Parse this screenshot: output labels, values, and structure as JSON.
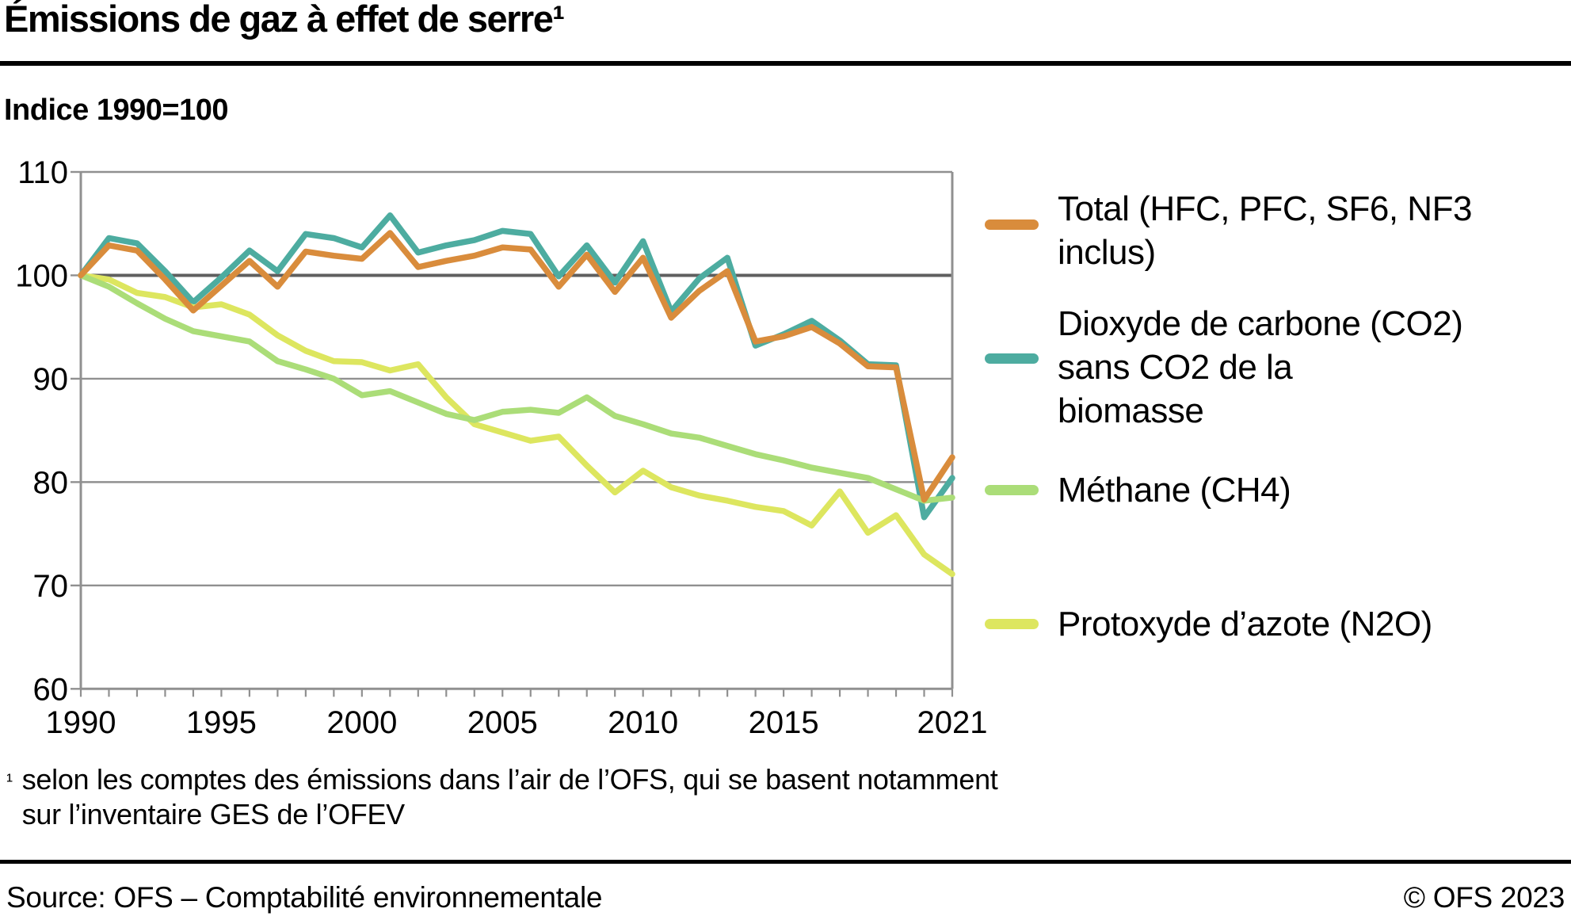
{
  "title": "Émissions de gaz à effet de serre¹",
  "subtitle": "Indice 1990=100",
  "legend": {
    "items": [
      {
        "id": "total",
        "color": "#D98C3C",
        "lines": [
          "Total (HFC, PFC, SF6, NF3",
          "inclus)"
        ]
      },
      {
        "id": "co2",
        "color": "#4DACA0",
        "lines": [
          "Dioxyde de carbone (CO2)",
          "sans CO2 de la",
          "biomasse"
        ]
      },
      {
        "id": "ch4",
        "color": "#ABDD78",
        "lines": [
          "Méthane (CH4)"
        ]
      },
      {
        "id": "n2o",
        "color": "#DDE65F",
        "lines": [
          "Protoxyde d’azote (N2O)"
        ]
      }
    ]
  },
  "footnote": {
    "marker": "¹",
    "lines": [
      "selon les comptes des émissions dans l’air de l’OFS, qui se basent notamment",
      "sur l’inventaire GES de l’OFEV"
    ]
  },
  "source_row": {
    "left": "Source: OFS – Comptabilité environnementale",
    "right": "© OFS 2023"
  },
  "colors": {
    "total": "#D98C3C",
    "co2": "#4DACA0",
    "ch4": "#ABDD78",
    "n2o": "#DDE65F",
    "grid": "#909090",
    "grid_100": "#5F5F5F",
    "axis": "#909090",
    "text": "#000000"
  },
  "chart_data": {
    "type": "line",
    "title": "Émissions de gaz à effet de serre",
    "ylabel": "Indice 1990=100",
    "xlabel": "",
    "grid": true,
    "legend_position": "right",
    "ylim": [
      60,
      110
    ],
    "yticks": [
      60,
      70,
      80,
      90,
      100,
      110
    ],
    "xticks_labeled": [
      1990,
      1995,
      2000,
      2005,
      2010,
      2015,
      2021
    ],
    "x": [
      1990,
      1991,
      1992,
      1993,
      1994,
      1995,
      1996,
      1997,
      1998,
      1999,
      2000,
      2001,
      2002,
      2003,
      2004,
      2005,
      2006,
      2007,
      2008,
      2009,
      2010,
      2011,
      2012,
      2013,
      2014,
      2015,
      2016,
      2017,
      2018,
      2019,
      2020,
      2021
    ],
    "series": [
      {
        "id": "total",
        "name": "Total (HFC, PFC, SF6, NF3 inclus)",
        "color": "#D98C3C",
        "values": [
          100,
          102.9,
          102.4,
          99.6,
          96.6,
          99.0,
          101.4,
          98.9,
          102.3,
          101.9,
          101.6,
          104.1,
          100.8,
          101.4,
          101.9,
          102.7,
          102.5,
          98.9,
          102.0,
          98.4,
          101.7,
          95.9,
          98.5,
          100.4,
          93.6,
          94.1,
          95.0,
          93.4,
          91.2,
          91.1,
          78.3,
          82.4
        ]
      },
      {
        "id": "co2",
        "name": "Dioxyde de carbone (CO2) sans CO2 de la biomasse",
        "color": "#4DACA0",
        "values": [
          100,
          103.6,
          103.1,
          100.4,
          97.4,
          99.8,
          102.4,
          100.4,
          104.0,
          103.6,
          102.7,
          105.8,
          102.2,
          102.9,
          103.4,
          104.3,
          104.0,
          99.9,
          102.9,
          99.3,
          103.3,
          96.5,
          99.7,
          101.7,
          93.2,
          94.3,
          95.6,
          93.7,
          91.4,
          91.3,
          76.6,
          80.4
        ]
      },
      {
        "id": "ch4",
        "name": "Méthane (CH4)",
        "color": "#ABDD78",
        "values": [
          100,
          98.9,
          97.3,
          95.8,
          94.6,
          94.1,
          93.6,
          91.7,
          90.9,
          90.0,
          88.4,
          88.8,
          87.7,
          86.6,
          86.0,
          86.8,
          87.0,
          86.7,
          88.2,
          86.4,
          85.6,
          84.7,
          84.3,
          83.5,
          82.7,
          82.1,
          81.4,
          80.9,
          80.4,
          79.3,
          78.2,
          78.5
        ]
      },
      {
        "id": "n2o",
        "name": "Protoxyde d’azote (N2O)",
        "color": "#DDE65F",
        "values": [
          100,
          99.6,
          98.3,
          97.9,
          96.9,
          97.2,
          96.2,
          94.2,
          92.7,
          91.7,
          91.6,
          90.8,
          91.4,
          88.2,
          85.6,
          84.8,
          84.0,
          84.4,
          81.6,
          79.0,
          81.1,
          79.5,
          78.7,
          78.2,
          77.6,
          77.2,
          75.8,
          79.1,
          75.1,
          76.8,
          73.0,
          71.1
        ]
      }
    ]
  }
}
